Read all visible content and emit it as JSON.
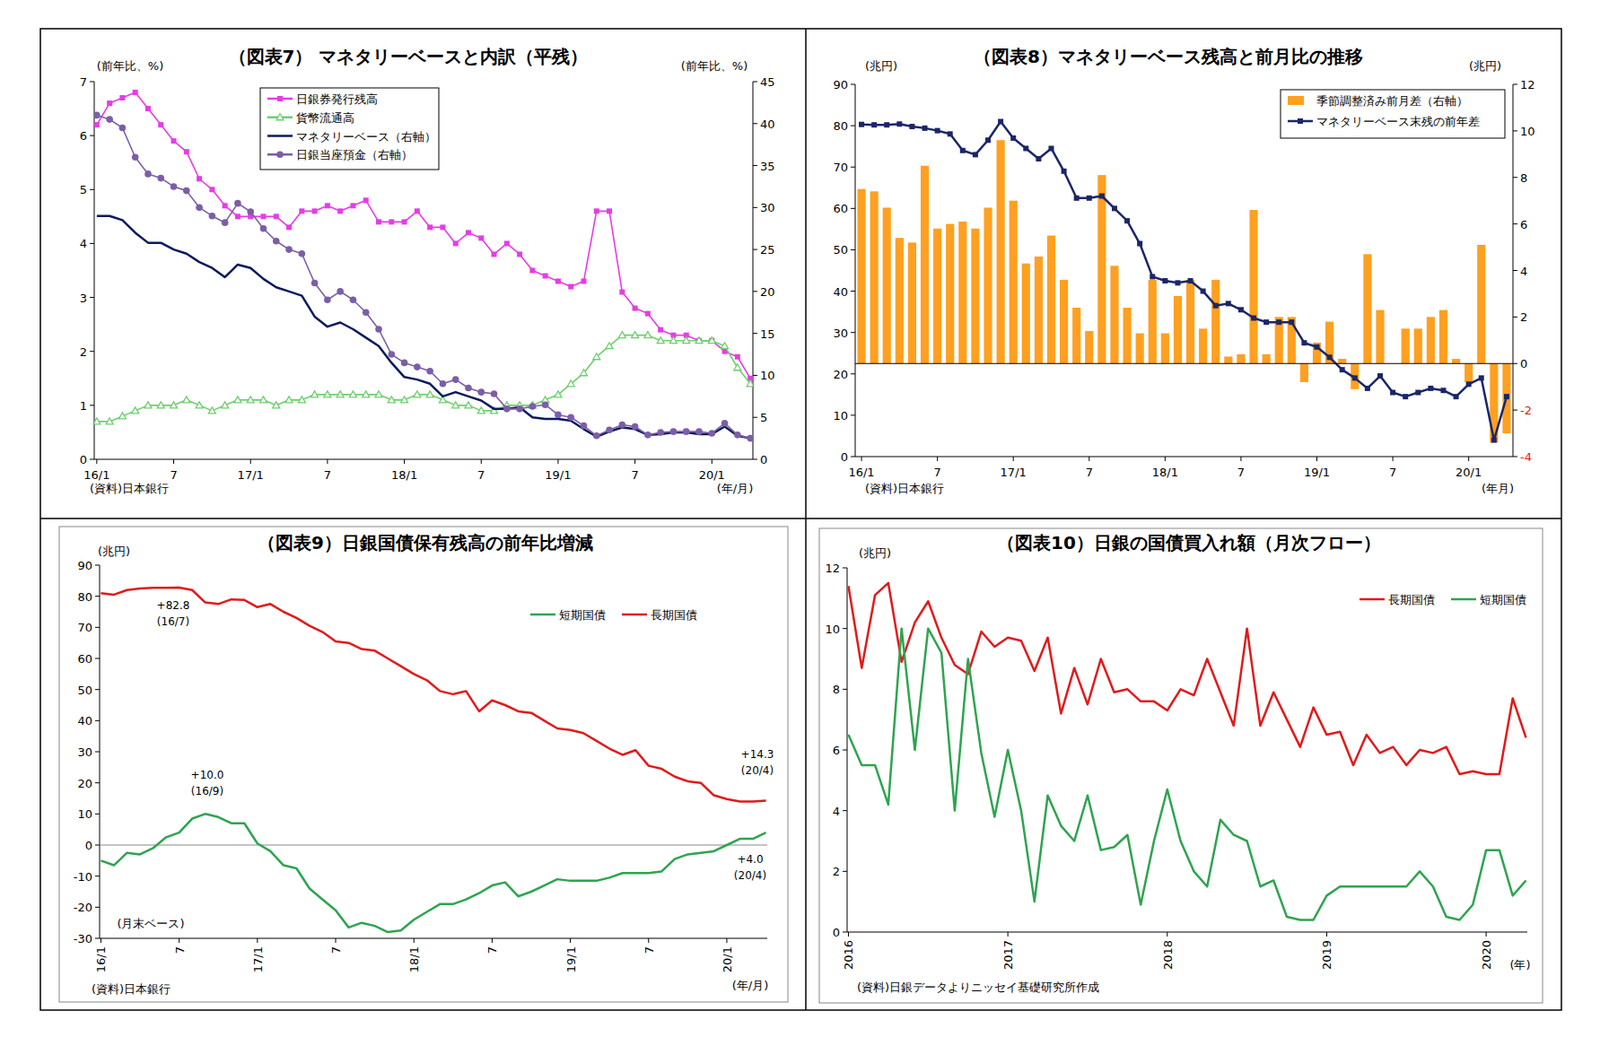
{
  "chart_data": [
    {
      "type": "line",
      "title": "（図表7） マネタリーベースと内訳（平残）",
      "y_label": "(前年比、%)",
      "y2_label": "(前年比、%)",
      "x_label": "(年/月)",
      "source": "(資料)日本銀行",
      "legend": "top-left",
      "categories": [
        "16/1",
        null,
        null,
        null,
        null,
        null,
        "7",
        null,
        null,
        null,
        null,
        null,
        "17/1",
        null,
        null,
        null,
        null,
        null,
        "7",
        null,
        null,
        null,
        null,
        null,
        "18/1",
        null,
        null,
        null,
        null,
        null,
        "7",
        null,
        null,
        null,
        null,
        null,
        "19/1",
        null,
        null,
        null,
        null,
        null,
        "7",
        null,
        null,
        null,
        null,
        null,
        "20/1",
        null,
        null,
        null
      ],
      "ylim": [
        0,
        7
      ],
      "yticks": [
        0,
        1,
        2,
        3,
        4,
        5,
        6,
        7
      ],
      "y2lim": [
        0,
        45
      ],
      "y2ticks": [
        0,
        5,
        10,
        15,
        20,
        25,
        30,
        35,
        40,
        45
      ],
      "series": [
        {
          "name": "日銀券発行残高",
          "color": "#e63ce6",
          "marker": "square",
          "values": [
            6.2,
            6.6,
            6.7,
            6.8,
            6.5,
            6.2,
            5.9,
            5.7,
            5.2,
            5.0,
            4.7,
            4.5,
            4.5,
            4.5,
            4.5,
            4.3,
            4.6,
            4.6,
            4.7,
            4.6,
            4.7,
            4.8,
            4.4,
            4.4,
            4.4,
            4.6,
            4.3,
            4.3,
            4.0,
            4.2,
            4.1,
            3.8,
            4.0,
            3.8,
            3.5,
            3.4,
            3.3,
            3.2,
            3.3,
            4.6,
            4.6,
            3.1,
            2.8,
            2.7,
            2.4,
            2.3,
            2.3,
            2.2,
            2.2,
            2.0,
            1.9,
            1.5
          ]
        },
        {
          "name": "貨幣流通高",
          "color": "#6fcf6f",
          "marker": "triangle",
          "values": [
            0.7,
            0.7,
            0.8,
            0.9,
            1.0,
            1.0,
            1.0,
            1.1,
            1.0,
            0.9,
            1.0,
            1.1,
            1.1,
            1.1,
            1.0,
            1.1,
            1.1,
            1.2,
            1.2,
            1.2,
            1.2,
            1.2,
            1.2,
            1.1,
            1.1,
            1.2,
            1.2,
            1.1,
            1.0,
            1.0,
            0.9,
            0.9,
            1.0,
            1.0,
            1.0,
            1.1,
            1.2,
            1.4,
            1.6,
            1.9,
            2.1,
            2.3,
            2.3,
            2.3,
            2.2,
            2.2,
            2.2,
            2.2,
            2.2,
            2.1,
            1.7,
            1.4
          ]
        },
        {
          "name": "マネタリーベース（右軸）",
          "color": "#0b1a5e",
          "marker": "none",
          "axis": "y2",
          "values": [
            29,
            29,
            28.5,
            27,
            25.8,
            25.8,
            25,
            24.5,
            23.5,
            22.8,
            21.7,
            23.2,
            22.8,
            21.5,
            20.5,
            20,
            19.5,
            17,
            15.8,
            16.3,
            15.5,
            14.5,
            13.5,
            11.5,
            9.8,
            9.5,
            9,
            7.5,
            8,
            7.5,
            7,
            6,
            6,
            6.2,
            5,
            4.8,
            4.8,
            4.6,
            3.6,
            2.7,
            3.3,
            3.8,
            3.6,
            2.9,
            3.0,
            3.2,
            3.2,
            3.0,
            3.0,
            3.9,
            2.8,
            2.5
          ]
        },
        {
          "name": "日銀当座預金（右軸）",
          "color": "#7b5ea7",
          "marker": "circle",
          "axis": "y2",
          "values": [
            41,
            40.5,
            39.5,
            36,
            34,
            33.5,
            32.5,
            32,
            30,
            29,
            28.2,
            30.5,
            29.5,
            27.5,
            26,
            25,
            24.5,
            21,
            19,
            20,
            19,
            17.5,
            15.5,
            12.5,
            11.5,
            11,
            10.5,
            9,
            9.5,
            8.5,
            8,
            7.8,
            6,
            6,
            6.3,
            6.5,
            5.3,
            5.0,
            4.0,
            2.8,
            3.5,
            4.1,
            3.9,
            2.9,
            3.2,
            3.3,
            3.3,
            3.3,
            3.1,
            4.3,
            2.9,
            2.5
          ]
        }
      ]
    },
    {
      "type": "bar",
      "title": "（図表8）マネタリーベース残高と前月比の推移",
      "y_label": "(兆円)",
      "y2_label": "(兆円)",
      "x_label": "(年月)",
      "source": "(資料)日本銀行",
      "legend": "top-right",
      "categories": [
        "16/1",
        null,
        null,
        null,
        null,
        null,
        "7",
        null,
        null,
        null,
        null,
        null,
        "17/1",
        null,
        null,
        null,
        null,
        null,
        "7",
        null,
        null,
        null,
        null,
        null,
        "18/1",
        null,
        null,
        null,
        null,
        null,
        "7",
        null,
        null,
        null,
        null,
        null,
        "19/1",
        null,
        null,
        null,
        null,
        null,
        "7",
        null,
        null,
        null,
        null,
        null,
        "20/1",
        null,
        null,
        null
      ],
      "ylim": [
        0,
        90
      ],
      "yticks": [
        0,
        10,
        20,
        30,
        40,
        50,
        60,
        70,
        80,
        90
      ],
      "y2lim": [
        -4,
        12
      ],
      "y2ticks": [
        -4,
        -2,
        0,
        2,
        4,
        6,
        8,
        10,
        12
      ],
      "series": [
        {
          "name": "季節調整済み前月差（右軸）",
          "type": "bar",
          "color": "#ffa020",
          "axis": "y2",
          "values": [
            7.5,
            7.4,
            6.7,
            5.4,
            5.2,
            8.5,
            5.8,
            6.0,
            6.1,
            5.8,
            6.7,
            9.6,
            7.0,
            4.3,
            4.6,
            5.5,
            3.6,
            2.4,
            1.4,
            8.1,
            4.2,
            2.4,
            1.3,
            3.6,
            1.3,
            2.9,
            3.6,
            1.5,
            3.6,
            0.3,
            0.4,
            6.6,
            0.4,
            2.0,
            2.0,
            -0.8,
            0.9,
            1.8,
            0.2,
            -1.1,
            4.7,
            2.3,
            0,
            1.5,
            1.5,
            2.0,
            2.3,
            0.2,
            -0.8,
            5.1,
            -3.4,
            -3.0
          ]
        },
        {
          "name": "マネタリーベース末残の前年差",
          "type": "line",
          "color": "#1b2669",
          "marker": "square",
          "values": [
            80.3,
            80.2,
            80.2,
            80.4,
            79.8,
            79.4,
            78.8,
            78,
            74,
            73,
            76.5,
            81,
            77,
            74.5,
            72,
            74.5,
            69,
            62.5,
            62.5,
            63,
            60,
            57,
            51.5,
            43.5,
            42.5,
            42,
            42.5,
            40,
            36.5,
            37,
            35.5,
            33.5,
            32.5,
            32.5,
            32.5,
            27.5,
            26.5,
            24,
            21,
            19,
            16.5,
            19.5,
            15.5,
            14.5,
            15.5,
            16.5,
            16,
            14.5,
            17.5,
            19,
            4,
            14.5
          ]
        }
      ]
    },
    {
      "type": "line",
      "title": "（図表9）日銀国債保有残高の前年比増減",
      "y_label": "(兆円)",
      "x_label": "(年/月)",
      "source": "(資料)日本銀行",
      "legend": "top-right",
      "note": "(月末ベース)",
      "annotations": [
        [
          "+82.8",
          "(16/7)"
        ],
        [
          "+10.0",
          "(16/9)"
        ],
        [
          "+14.3",
          "(20/4)"
        ],
        [
          "+4.0",
          "(20/4)"
        ]
      ],
      "categories": [
        "16/1",
        null,
        null,
        null,
        null,
        null,
        "7",
        null,
        null,
        null,
        null,
        null,
        "17/1",
        null,
        null,
        null,
        null,
        null,
        "7",
        null,
        null,
        null,
        null,
        null,
        "18/1",
        null,
        null,
        null,
        null,
        null,
        "7",
        null,
        null,
        null,
        null,
        null,
        "19/1",
        null,
        null,
        null,
        null,
        null,
        "7",
        null,
        null,
        null,
        null,
        null,
        "20/1",
        null,
        null,
        null
      ],
      "ylim": [
        -30,
        90
      ],
      "yticks": [
        -30,
        -20,
        -10,
        0,
        10,
        20,
        30,
        40,
        50,
        60,
        70,
        80,
        90
      ],
      "series": [
        {
          "name": "短期国債",
          "color": "#2ea44f",
          "marker": "none",
          "values": [
            -5,
            -6.5,
            -2.5,
            -3,
            -1,
            2.5,
            4,
            8.5,
            10,
            9,
            7,
            7,
            0.5,
            -2,
            -6.5,
            -7.5,
            -14,
            -17.5,
            -21,
            -26.5,
            -25,
            -26,
            -28,
            -27.5,
            -24,
            -21.5,
            -19,
            -19,
            -17.5,
            -15.5,
            -13,
            -12,
            -16.5,
            -15,
            -13,
            -11,
            -11.5,
            -11.5,
            -11.5,
            -10.5,
            -9,
            -9,
            -9,
            -8.5,
            -4.5,
            -3,
            -2.5,
            -2,
            0,
            2,
            2,
            4
          ]
        },
        {
          "name": "長期国債",
          "color": "#e01b1b",
          "marker": "none",
          "values": [
            81,
            80.5,
            82,
            82.5,
            82.7,
            82.7,
            82.8,
            82,
            78,
            77.5,
            79,
            78.8,
            76.5,
            77.5,
            75,
            73,
            70.5,
            68.5,
            65.5,
            65,
            63,
            62.5,
            60,
            57.5,
            55,
            53,
            49.5,
            48.5,
            49.5,
            43,
            46.5,
            45,
            43,
            42.5,
            40,
            37.5,
            37,
            36,
            33.5,
            31,
            29,
            30.5,
            25.5,
            24.5,
            22,
            20.5,
            20,
            16,
            14.8,
            14,
            14,
            14.3
          ]
        }
      ]
    },
    {
      "type": "line",
      "title": "（図表10）日銀の国債買入れ額（月次フロー）",
      "y_label": "(兆円)",
      "x_label": "(年)",
      "source": "(資料)日銀データよりニッセイ基礎研究所作成",
      "legend": "top-right",
      "categories": [
        "2016",
        null,
        null,
        null,
        null,
        null,
        null,
        null,
        null,
        null,
        null,
        null,
        "2017",
        null,
        null,
        null,
        null,
        null,
        null,
        null,
        null,
        null,
        null,
        null,
        "2018",
        null,
        null,
        null,
        null,
        null,
        null,
        null,
        null,
        null,
        null,
        null,
        "2019",
        null,
        null,
        null,
        null,
        null,
        null,
        null,
        null,
        null,
        null,
        null,
        "2020",
        null,
        null,
        null
      ],
      "ylim": [
        0,
        12
      ],
      "yticks": [
        0,
        2,
        4,
        6,
        8,
        10,
        12
      ],
      "series": [
        {
          "name": "長期国債",
          "color": "#e01b1b",
          "marker": "none",
          "values": [
            11.4,
            8.7,
            11.1,
            11.5,
            8.9,
            10.2,
            10.9,
            9.7,
            8.8,
            8.5,
            9.9,
            9.4,
            9.7,
            9.6,
            8.6,
            9.7,
            7.2,
            8.7,
            7.5,
            9.0,
            7.9,
            8.0,
            7.6,
            7.6,
            7.3,
            8.0,
            7.8,
            9.0,
            7.9,
            6.8,
            10.0,
            6.8,
            7.9,
            7.0,
            6.1,
            7.4,
            6.5,
            6.6,
            5.5,
            6.5,
            5.9,
            6.1,
            5.5,
            6.0,
            5.9,
            6.1,
            5.2,
            5.3,
            5.2,
            5.2,
            7.7,
            6.4
          ]
        },
        {
          "name": "短期国債",
          "color": "#2ea44f",
          "marker": "none",
          "values": [
            6.5,
            5.5,
            5.5,
            4.2,
            10.0,
            6.0,
            10.0,
            9.2,
            4.0,
            9.0,
            5.9,
            3.8,
            6.0,
            4.0,
            1.0,
            4.5,
            3.5,
            3.0,
            4.5,
            2.7,
            2.8,
            3.2,
            0.9,
            3.0,
            4.7,
            3.0,
            2.0,
            1.5,
            3.7,
            3.2,
            3.0,
            1.5,
            1.7,
            0.5,
            0.4,
            0.4,
            1.2,
            1.5,
            1.5,
            1.5,
            1.5,
            1.5,
            1.5,
            2.0,
            1.5,
            0.5,
            0.4,
            0.9,
            2.7,
            2.7,
            1.2,
            1.7
          ]
        }
      ]
    }
  ]
}
